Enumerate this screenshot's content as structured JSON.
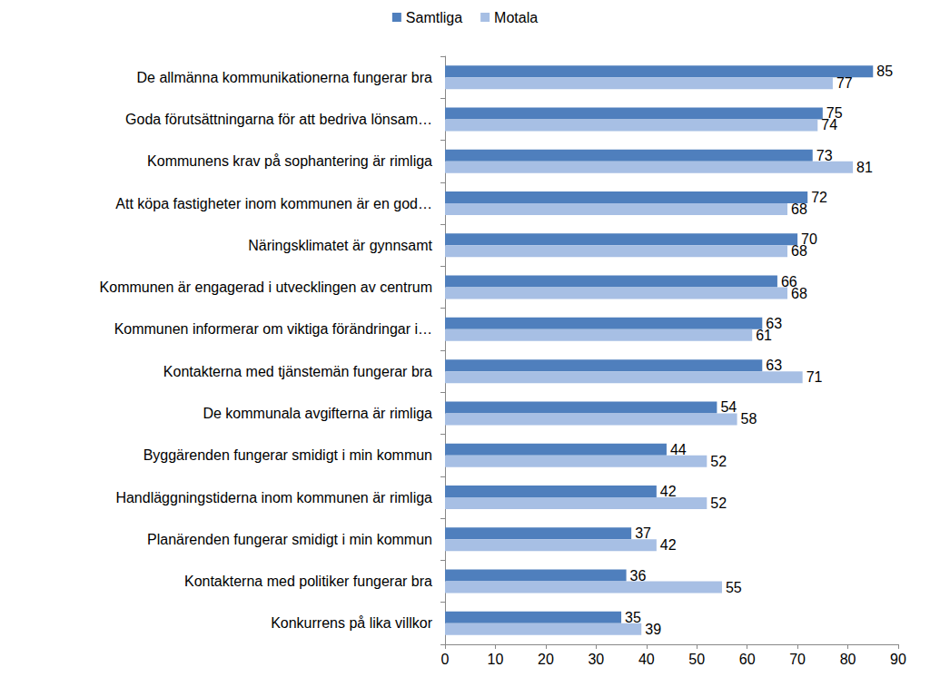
{
  "chart_data": {
    "type": "bar",
    "orientation": "horizontal",
    "categories": [
      "De allmänna kommunikationerna fungerar bra",
      "Goda förutsättningarna för att bedriva lönsam…",
      "Kommunens krav på sophantering är rimliga",
      "Att köpa fastigheter inom kommunen är en god…",
      "Näringsklimatet är gynnsamt",
      "Kommunen är engagerad i utvecklingen av centrum",
      "Kommunen informerar om viktiga förändringar i…",
      "Kontakterna med tjänstemän fungerar bra",
      "De kommunala avgifterna är rimliga",
      "Byggärenden fungerar smidigt i min kommun",
      "Handläggningstiderna inom kommunen är rimliga",
      "Planärenden fungerar smidigt i min kommun",
      "Kontakterna med politiker fungerar bra",
      "Konkurrens på lika villkor"
    ],
    "series": [
      {
        "name": "Samtliga",
        "color": "#4f7fbd",
        "values": [
          85,
          75,
          73,
          72,
          70,
          66,
          63,
          63,
          54,
          44,
          42,
          37,
          36,
          35
        ]
      },
      {
        "name": "Motala",
        "color": "#a7bfe4",
        "values": [
          77,
          74,
          81,
          68,
          68,
          68,
          61,
          71,
          58,
          52,
          52,
          42,
          55,
          39
        ]
      }
    ],
    "xlim": [
      0,
      90
    ],
    "xticks": [
      0,
      10,
      20,
      30,
      40,
      50,
      60,
      70,
      80,
      90
    ],
    "data_labels": true,
    "legend": "top",
    "grid": false
  }
}
